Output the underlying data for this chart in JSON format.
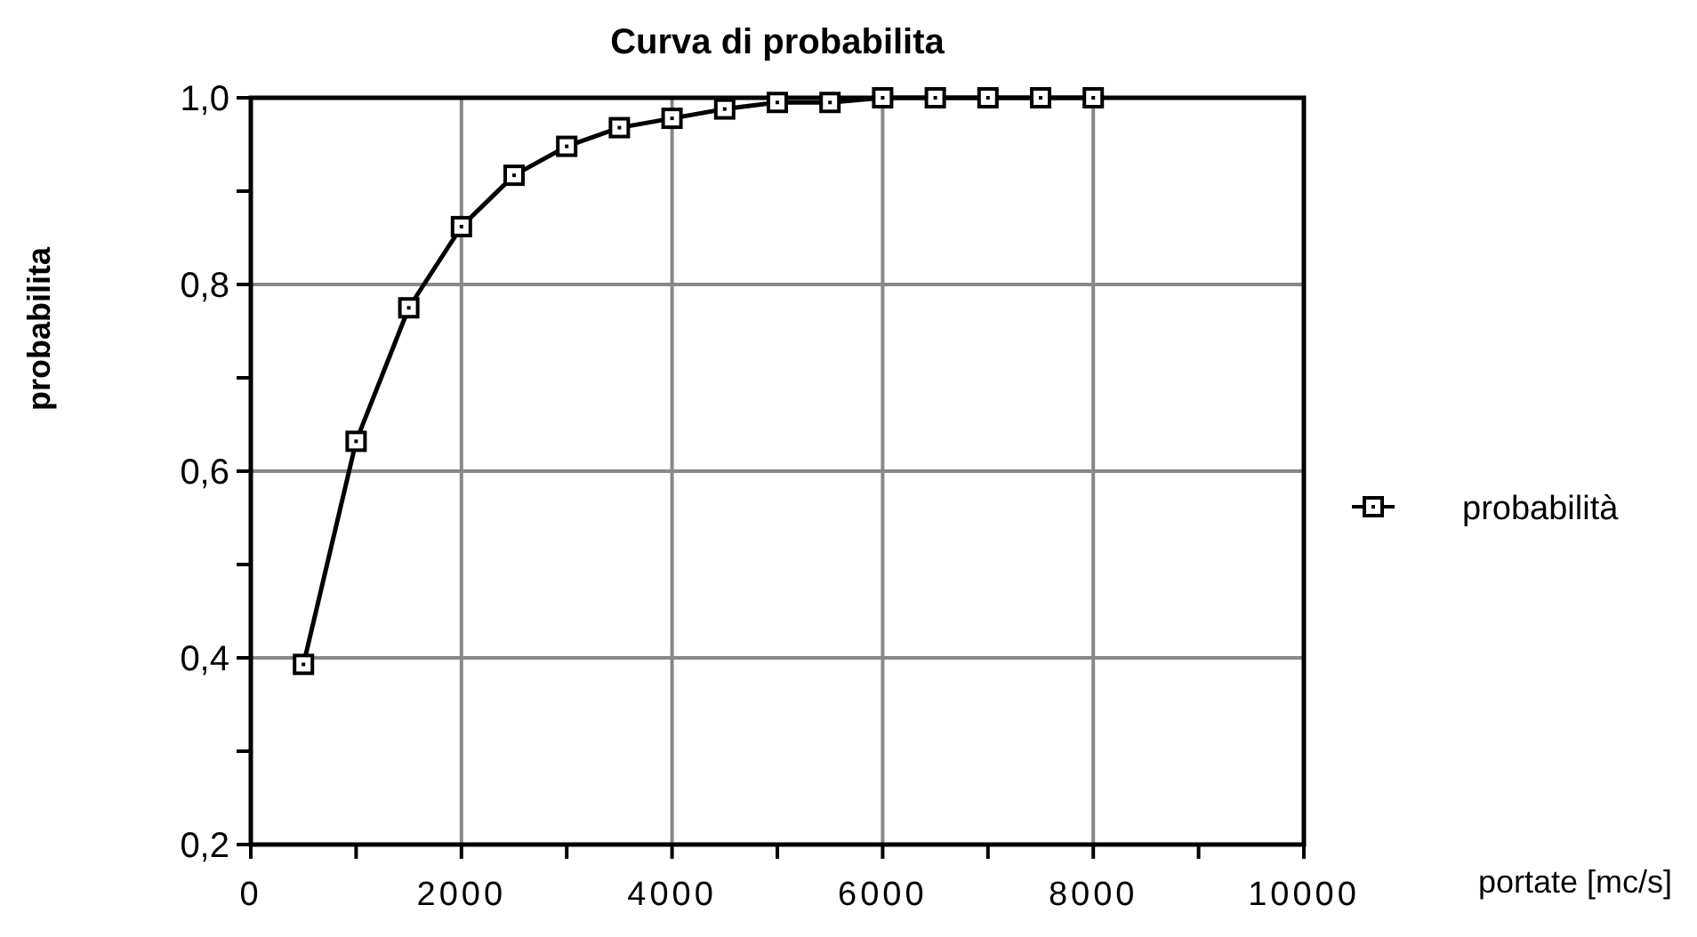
{
  "chart_data": {
    "type": "line",
    "title": "Curva di probabilita",
    "xlabel": "portate [mc/s]",
    "ylabel": "probabilita",
    "x": [
      500,
      1000,
      1500,
      2000,
      2500,
      3000,
      3500,
      4000,
      4500,
      5000,
      5500,
      6000,
      6500,
      7000,
      7500,
      8000
    ],
    "series": [
      {
        "name": "probabilità",
        "color": "#000000",
        "values": [
          0.393,
          0.632,
          0.775,
          0.862,
          0.917,
          0.948,
          0.968,
          0.978,
          0.988,
          0.995,
          0.995,
          1.0,
          1.0,
          1.0,
          1.0,
          1.0
        ]
      }
    ],
    "xlim": [
      0,
      10000
    ],
    "ylim": [
      0.2,
      1.0
    ],
    "xticks": [
      0,
      {
        "value": 1000,
        "label": null
      },
      2000,
      {
        "value": 3000,
        "label": null
      },
      4000,
      {
        "value": 5000,
        "label": null
      },
      6000,
      {
        "value": 7000,
        "label": null
      },
      8000,
      {
        "value": 9000,
        "label": null
      },
      10000
    ],
    "yticks": [
      {
        "value": 0.2,
        "label": "0,2"
      },
      {
        "value": 0.3,
        "label": null
      },
      {
        "value": 0.4,
        "label": "0,4"
      },
      {
        "value": 0.5,
        "label": null
      },
      {
        "value": 0.6,
        "label": "0,6"
      },
      {
        "value": 0.7,
        "label": null
      },
      {
        "value": 0.8,
        "label": "0,8"
      },
      {
        "value": 0.9,
        "label": null
      },
      {
        "value": 1.0,
        "label": "1,0"
      }
    ],
    "grid": true,
    "legend": "right",
    "marker": "square",
    "line_style": "solid"
  }
}
